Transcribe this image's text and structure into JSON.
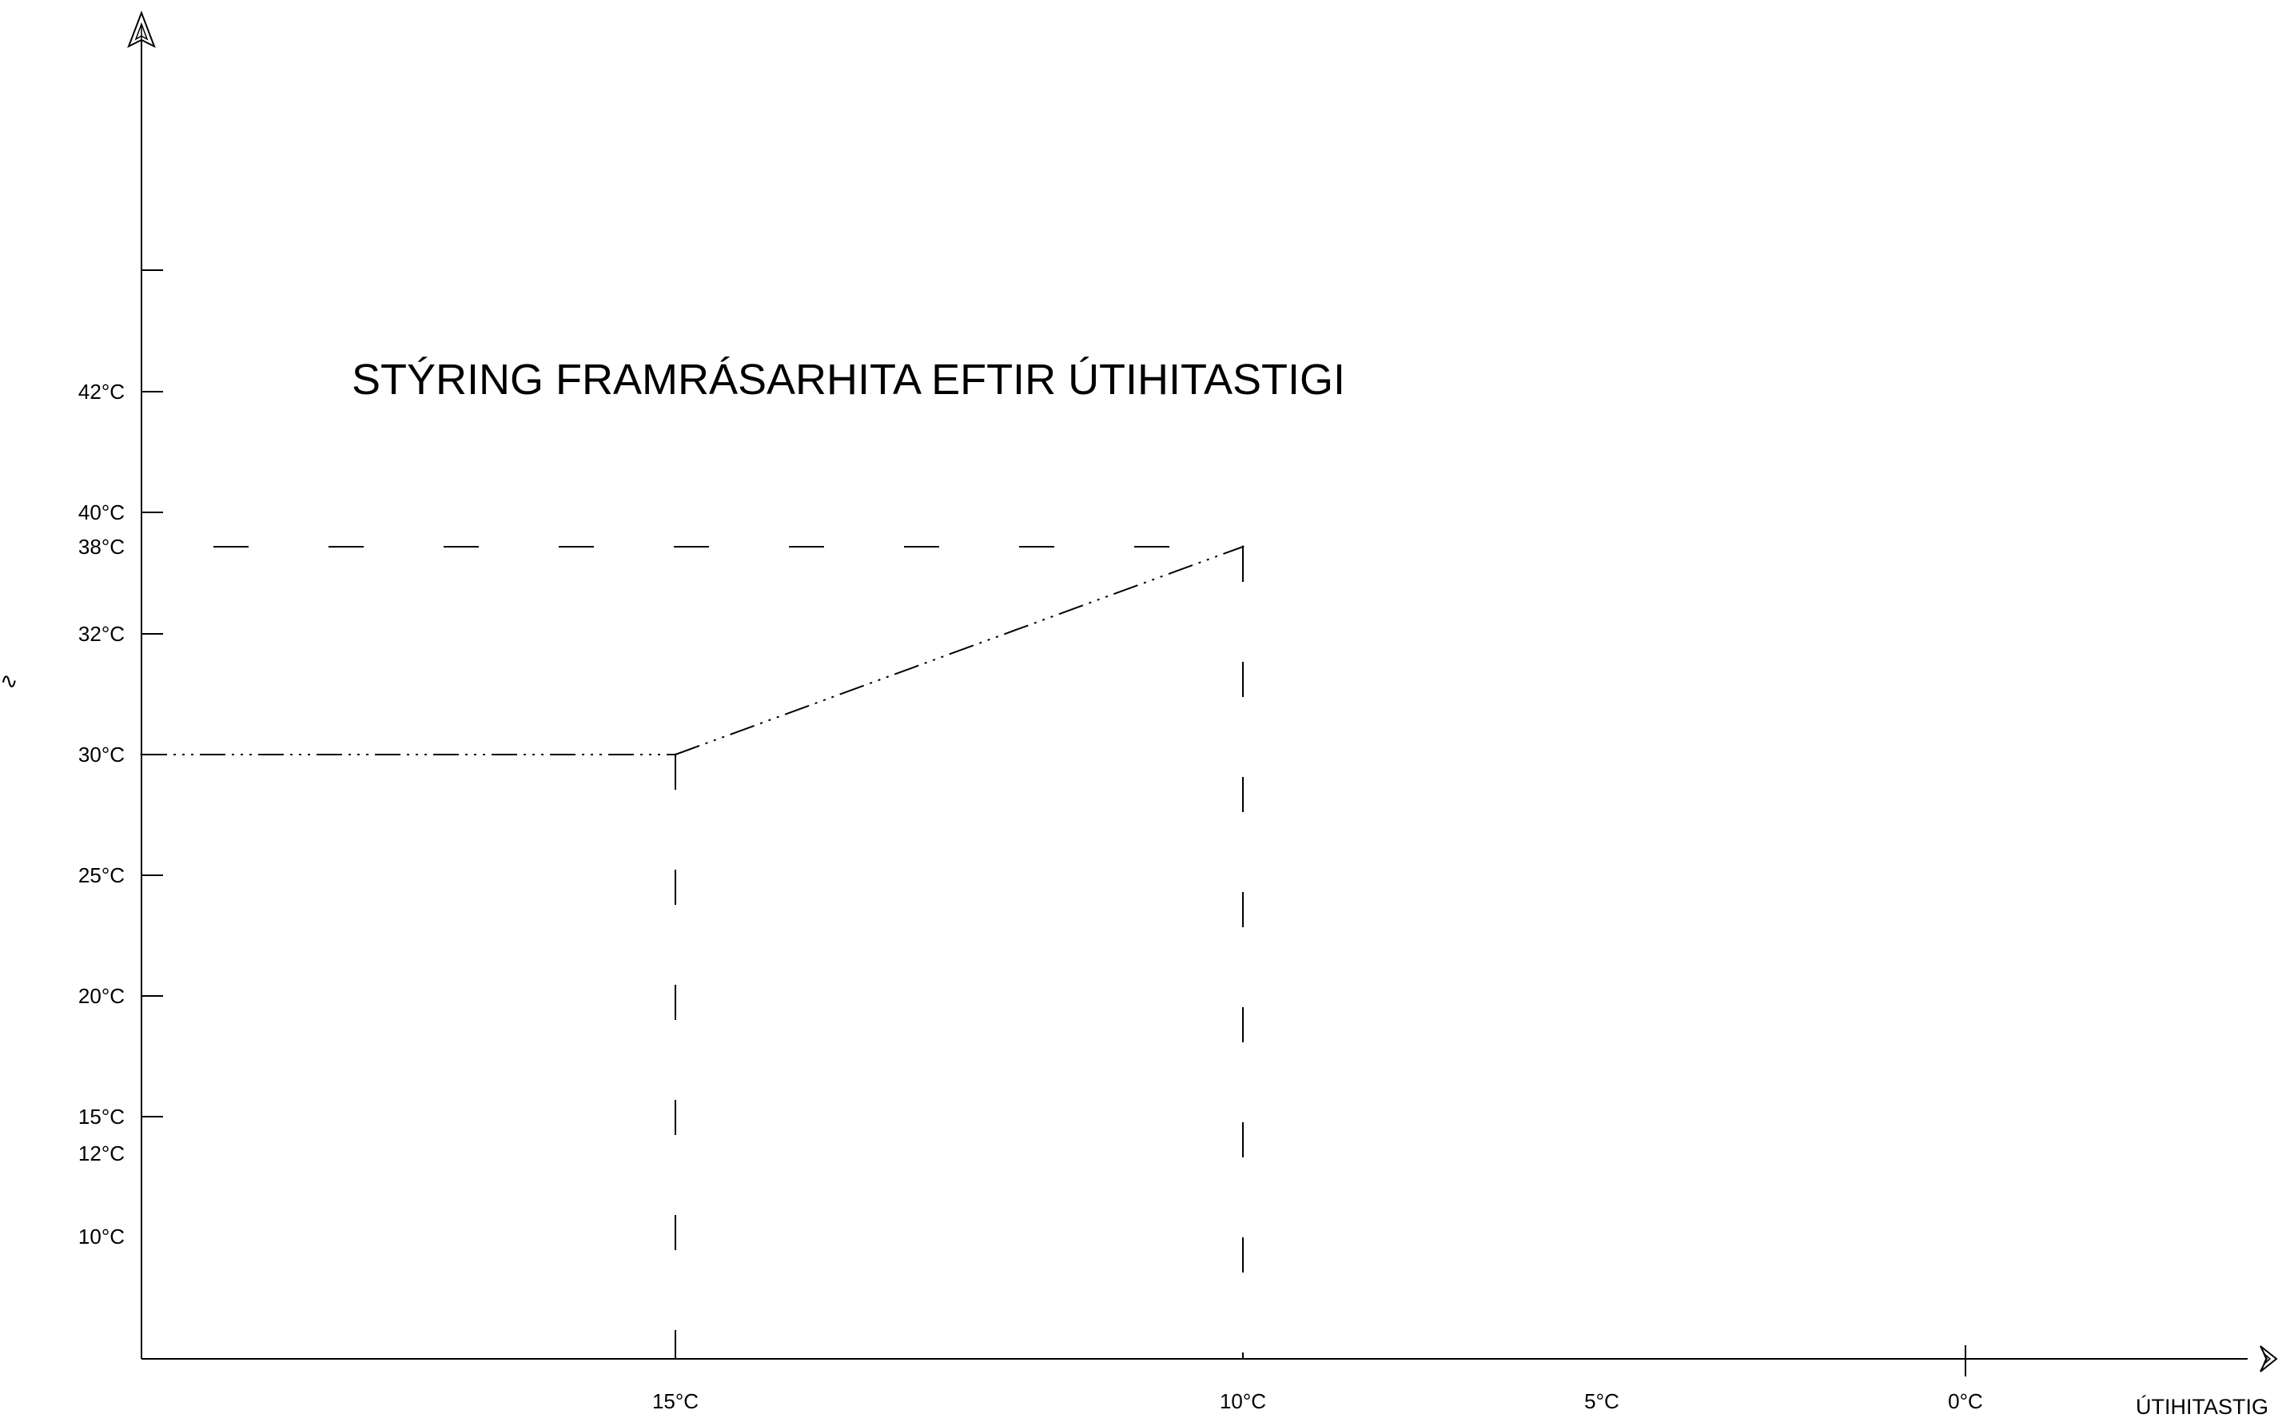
{
  "chart_data": {
    "type": "line",
    "title": "STÝRING FRAMRÁSARHITA EFTIR ÚTIHITASTIGI",
    "xlabel": "ÚTIHITASTIG",
    "ylabel": "",
    "x_reversed": true,
    "x_ticks": [
      "15°C",
      "10°C",
      "5°C",
      "0°C"
    ],
    "y_ticks": [
      "42°C",
      "40°C",
      "38°C",
      "32°C",
      "30°C",
      "25°C",
      "20°C",
      "15°C",
      "12°C",
      "10°C"
    ],
    "series": [
      {
        "points": [
          {
            "x": 20,
            "y": 30
          },
          {
            "x": 15,
            "y": 30
          },
          {
            "x": 10,
            "y": 38
          }
        ]
      }
    ],
    "reference_lines": [
      {
        "orientation": "horizontal",
        "value": 38,
        "from_x": 20,
        "to_x": 10
      },
      {
        "orientation": "vertical",
        "value": 15,
        "from_y": 30
      },
      {
        "orientation": "vertical",
        "value": 10,
        "from_y": 38
      }
    ],
    "grid": false
  }
}
